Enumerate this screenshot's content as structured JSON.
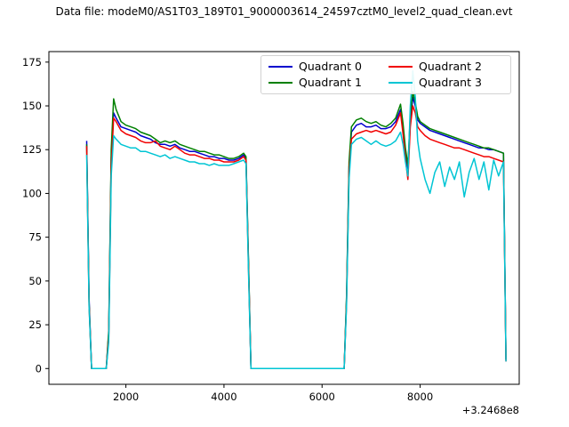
{
  "chart_data": {
    "type": "line",
    "title": "Data file: modeM0/AS1T03_189T01_9000003614_24597cztM0_level2_quad_clean.evt",
    "xlabel": "",
    "ylabel": "",
    "x_offset": "+3.2468e8",
    "xlim": [
      430,
      10020
    ],
    "ylim": [
      -9,
      181
    ],
    "xticks": [
      2000,
      4000,
      6000,
      8000
    ],
    "yticks": [
      0,
      25,
      50,
      75,
      100,
      125,
      150,
      175
    ],
    "grid": false,
    "legend_position": "upper center, 2 columns",
    "x": [
      1200,
      1250,
      1300,
      1400,
      1500,
      1600,
      1650,
      1700,
      1750,
      1800,
      1900,
      2000,
      2100,
      2200,
      2300,
      2400,
      2500,
      2600,
      2700,
      2800,
      2900,
      3000,
      3100,
      3200,
      3300,
      3400,
      3500,
      3600,
      3700,
      3800,
      3900,
      4000,
      4100,
      4200,
      4300,
      4400,
      4450,
      4500,
      4550,
      4600,
      5000,
      5500,
      6000,
      6400,
      6450,
      6500,
      6550,
      6600,
      6700,
      6800,
      6900,
      7000,
      7100,
      7200,
      7300,
      7400,
      7500,
      7600,
      7650,
      7700,
      7750,
      7800,
      7850,
      7900,
      7950,
      8000,
      8100,
      8200,
      8300,
      8400,
      8500,
      8600,
      8700,
      8800,
      8900,
      9000,
      9100,
      9200,
      9300,
      9400,
      9500,
      9600,
      9700,
      9750
    ],
    "series": [
      {
        "name": "Quadrant 0",
        "color": "#0000cd",
        "values": [
          130,
          40,
          0,
          0,
          0,
          0,
          20,
          120,
          146,
          143,
          138,
          137,
          136,
          135,
          133,
          132,
          131,
          129,
          128,
          128,
          127,
          128,
          126,
          125,
          124,
          124,
          123,
          122,
          121,
          121,
          120,
          120,
          119,
          119,
          120,
          122,
          120,
          60,
          0,
          0,
          0,
          0,
          0,
          0,
          0,
          40,
          115,
          135,
          139,
          140,
          138,
          138,
          139,
          137,
          137,
          138,
          141,
          148,
          138,
          124,
          112,
          140,
          155,
          150,
          142,
          140,
          138,
          136,
          135,
          134,
          133,
          132,
          131,
          130,
          129,
          128,
          127,
          126,
          126,
          125,
          125,
          124,
          123,
          5
        ]
      },
      {
        "name": "Quadrant 1",
        "color": "#008000",
        "values": [
          128,
          38,
          0,
          0,
          0,
          0,
          22,
          125,
          154,
          148,
          141,
          139,
          138,
          137,
          135,
          134,
          133,
          131,
          129,
          130,
          129,
          130,
          128,
          127,
          126,
          125,
          124,
          124,
          123,
          122,
          122,
          121,
          120,
          120,
          121,
          123,
          121,
          62,
          0,
          0,
          0,
          0,
          0,
          0,
          0,
          42,
          118,
          138,
          142,
          143,
          141,
          140,
          141,
          139,
          138,
          140,
          143,
          151,
          140,
          126,
          116,
          145,
          158,
          152,
          144,
          141,
          139,
          137,
          136,
          135,
          134,
          133,
          132,
          131,
          130,
          129,
          128,
          127,
          126,
          126,
          125,
          124,
          123,
          5
        ]
      },
      {
        "name": "Quadrant 2",
        "color": "#f10000",
        "values": [
          127,
          36,
          0,
          0,
          0,
          0,
          18,
          115,
          143,
          141,
          136,
          134,
          133,
          132,
          130,
          129,
          129,
          130,
          127,
          126,
          125,
          127,
          125,
          123,
          122,
          122,
          121,
          120,
          120,
          119,
          119,
          118,
          118,
          118,
          119,
          121,
          119,
          58,
          0,
          0,
          0,
          0,
          0,
          0,
          0,
          38,
          112,
          131,
          134,
          135,
          136,
          135,
          136,
          135,
          134,
          135,
          139,
          146,
          134,
          120,
          108,
          138,
          150,
          146,
          138,
          136,
          133,
          131,
          130,
          129,
          128,
          127,
          126,
          126,
          125,
          124,
          123,
          122,
          121,
          121,
          120,
          119,
          118,
          4
        ]
      },
      {
        "name": "Quadrant 3",
        "color": "#00c5d4",
        "values": [
          122,
          35,
          0,
          0,
          0,
          0,
          15,
          110,
          133,
          131,
          128,
          127,
          126,
          126,
          124,
          124,
          123,
          122,
          121,
          122,
          120,
          121,
          120,
          119,
          118,
          118,
          117,
          117,
          116,
          117,
          116,
          116,
          116,
          117,
          118,
          119,
          117,
          55,
          0,
          0,
          0,
          0,
          0,
          0,
          0,
          36,
          108,
          128,
          131,
          132,
          130,
          128,
          130,
          128,
          127,
          128,
          130,
          135,
          128,
          118,
          110,
          150,
          170,
          155,
          130,
          120,
          108,
          100,
          112,
          118,
          104,
          115,
          108,
          118,
          98,
          112,
          120,
          108,
          118,
          102,
          119,
          110,
          118,
          4
        ]
      }
    ]
  }
}
